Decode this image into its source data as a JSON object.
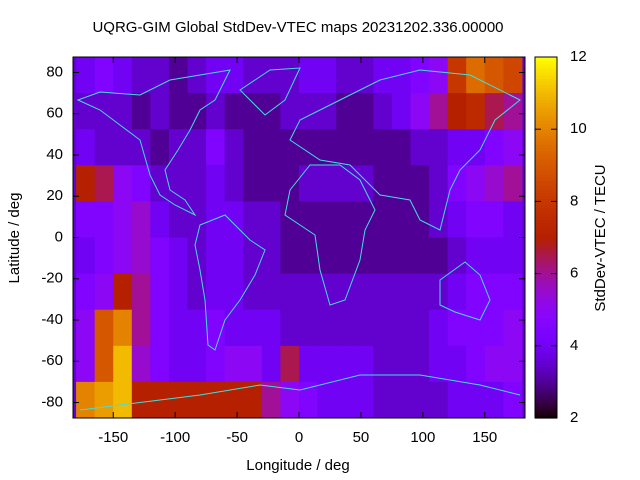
{
  "chart_data": {
    "type": "heatmap",
    "title": "UQRG-GIM Global StdDev-VTEC maps 20231202.336.00000",
    "x_label": "Longitude / deg",
    "y_label": "Latitude / deg",
    "colorbar_label": "StdDev-VTEC / TECU",
    "x": [
      -172.5,
      -157.5,
      -142.5,
      -127.5,
      -112.5,
      -97.5,
      -82.5,
      -67.5,
      -52.5,
      -37.5,
      -22.5,
      -7.5,
      7.5,
      22.5,
      37.5,
      52.5,
      67.5,
      82.5,
      97.5,
      112.5,
      127.5,
      142.5,
      157.5,
      172.5
    ],
    "y": [
      78.75,
      61.25,
      43.75,
      26.25,
      8.75,
      -8.75,
      -26.25,
      -43.75,
      -61.25,
      -78.75
    ],
    "z": [
      [
        4,
        4.5,
        4,
        3.5,
        3.5,
        3,
        3.5,
        4,
        4,
        3.5,
        3.5,
        3.5,
        4,
        4,
        3.5,
        3.5,
        4,
        4,
        4.5,
        5,
        8,
        9.5,
        9,
        8.5
      ],
      [
        3.5,
        3.5,
        3.5,
        3,
        3.5,
        3,
        3,
        3.5,
        3,
        3,
        3,
        3.5,
        3.5,
        3.5,
        3,
        3,
        3.5,
        4,
        5,
        6,
        7,
        7.5,
        6.5,
        6
      ],
      [
        4,
        3.5,
        3.5,
        3.5,
        3,
        3.5,
        3.5,
        4.5,
        3.5,
        3,
        3,
        3,
        3,
        3,
        3,
        3,
        3,
        3,
        3.5,
        3.5,
        4,
        4,
        4.5,
        5
      ],
      [
        7,
        6.5,
        5,
        4.5,
        3.5,
        3.5,
        3.5,
        4,
        3.5,
        3,
        3,
        3,
        3.5,
        3.5,
        3.5,
        3.5,
        3,
        3,
        3,
        3.5,
        4.5,
        5,
        5.5,
        6
      ],
      [
        4.5,
        4.5,
        5,
        5.5,
        4,
        3.5,
        3.5,
        4,
        4,
        3.5,
        3.5,
        3,
        3,
        3,
        3,
        3,
        3,
        3,
        3,
        3.5,
        4,
        4.5,
        4.5,
        4
      ],
      [
        4,
        4.5,
        5,
        5.5,
        4.5,
        4,
        3.5,
        4,
        4,
        3.5,
        3.5,
        3,
        3,
        3,
        3,
        3,
        3,
        3,
        3,
        3,
        3.5,
        4,
        4,
        4
      ],
      [
        4.5,
        5,
        7,
        6,
        4.5,
        4,
        3.5,
        4,
        4,
        3.5,
        3.5,
        3.5,
        3.5,
        3.5,
        3.5,
        3.5,
        3.5,
        3.5,
        3.5,
        3.5,
        4,
        4.5,
        4.5,
        4.5
      ],
      [
        5,
        9,
        10,
        6,
        4.5,
        4,
        4,
        4.5,
        4,
        4,
        4,
        3.5,
        3.5,
        3.5,
        3.5,
        3.5,
        3.5,
        3.5,
        3.5,
        4,
        4.5,
        4.5,
        4.5,
        5
      ],
      [
        5,
        9,
        11,
        5.5,
        4.5,
        4,
        4,
        4.5,
        5,
        5,
        4,
        6.5,
        4,
        4,
        4,
        4,
        3.5,
        3.5,
        3.5,
        4,
        4,
        4.5,
        5,
        5
      ],
      [
        10,
        10.5,
        11,
        7,
        7,
        7,
        7,
        7,
        7,
        7,
        6,
        5,
        4.5,
        4,
        4,
        4,
        3.5,
        3.5,
        3.5,
        3.5,
        4,
        4,
        4,
        4.5
      ]
    ],
    "xlim": [
      -182.5,
      182.5
    ],
    "ylim": [
      -87.5,
      87.5
    ],
    "xticks": [
      -150,
      -100,
      -50,
      0,
      50,
      100,
      150
    ],
    "yticks": [
      -80,
      -60,
      -40,
      -20,
      0,
      20,
      40,
      60,
      80
    ],
    "zlim": [
      2,
      12
    ],
    "zticks": [
      2,
      4,
      6,
      8,
      10,
      12
    ],
    "palette": "gnuplot"
  }
}
